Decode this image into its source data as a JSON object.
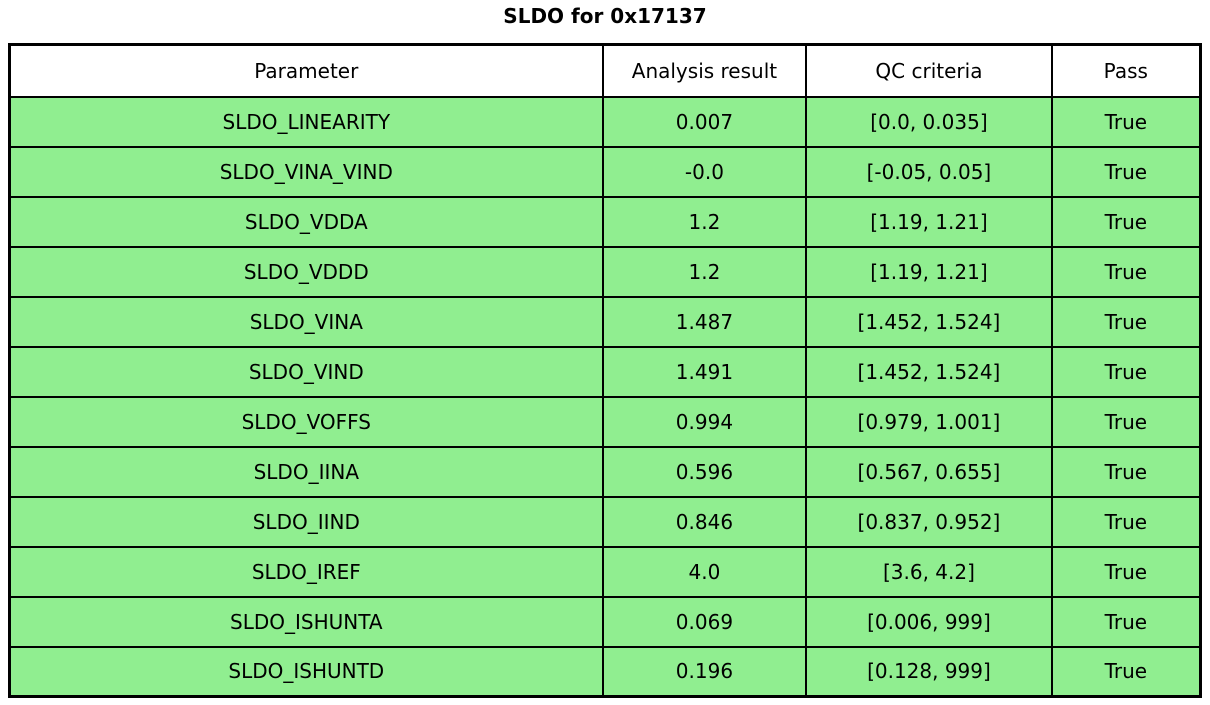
{
  "title": "SLDO for 0x17137",
  "colors": {
    "row_bg": "#90ee90",
    "header_bg": "#ffffff",
    "border": "#000000",
    "text": "#000000"
  },
  "chart_data": {
    "type": "table",
    "title": "SLDO for 0x17137",
    "columns": [
      "Parameter",
      "Analysis result",
      "QC criteria",
      "Pass"
    ],
    "rows": [
      {
        "parameter": "SLDO_LINEARITY",
        "result": "0.007",
        "criteria": "[0.0, 0.035]",
        "pass": "True"
      },
      {
        "parameter": "SLDO_VINA_VIND",
        "result": "-0.0",
        "criteria": "[-0.05, 0.05]",
        "pass": "True"
      },
      {
        "parameter": "SLDO_VDDA",
        "result": "1.2",
        "criteria": "[1.19, 1.21]",
        "pass": "True"
      },
      {
        "parameter": "SLDO_VDDD",
        "result": "1.2",
        "criteria": "[1.19, 1.21]",
        "pass": "True"
      },
      {
        "parameter": "SLDO_VINA",
        "result": "1.487",
        "criteria": "[1.452, 1.524]",
        "pass": "True"
      },
      {
        "parameter": "SLDO_VIND",
        "result": "1.491",
        "criteria": "[1.452, 1.524]",
        "pass": "True"
      },
      {
        "parameter": "SLDO_VOFFS",
        "result": "0.994",
        "criteria": "[0.979, 1.001]",
        "pass": "True"
      },
      {
        "parameter": "SLDO_IINA",
        "result": "0.596",
        "criteria": "[0.567, 0.655]",
        "pass": "True"
      },
      {
        "parameter": "SLDO_IIND",
        "result": "0.846",
        "criteria": "[0.837, 0.952]",
        "pass": "True"
      },
      {
        "parameter": "SLDO_IREF",
        "result": "4.0",
        "criteria": "[3.6, 4.2]",
        "pass": "True"
      },
      {
        "parameter": "SLDO_ISHUNTA",
        "result": "0.069",
        "criteria": "[0.006, 999]",
        "pass": "True"
      },
      {
        "parameter": "SLDO_ISHUNTD",
        "result": "0.196",
        "criteria": "[0.128, 999]",
        "pass": "True"
      }
    ],
    "layout": {
      "header_row_color": "#ffffff",
      "data_row_color": "#90ee90",
      "all_pass": true
    }
  }
}
